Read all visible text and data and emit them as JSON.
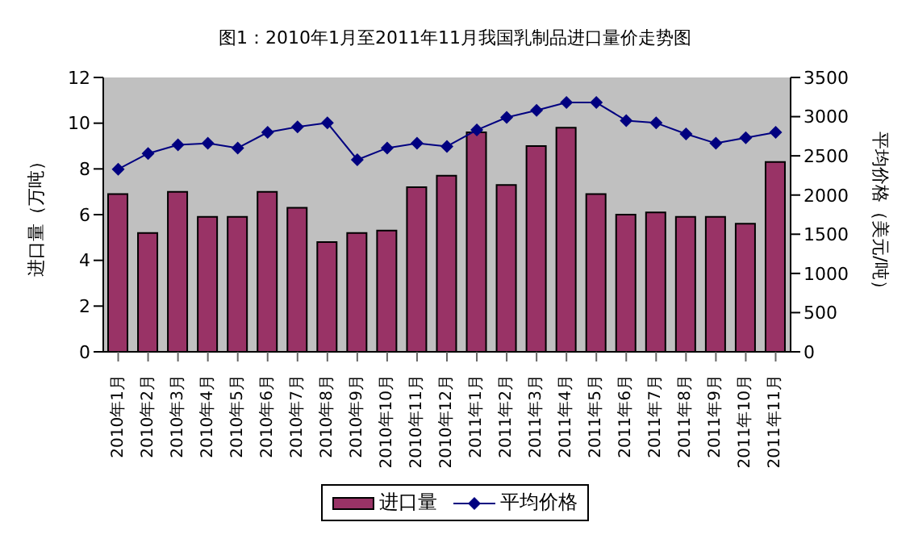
{
  "chart_data": {
    "type": "bar",
    "title": "图1：2010年1月至2011年11月我国乳制品进口量价走势图",
    "ylabel": "进口量（万吨）",
    "y2label": "平均价格（美元/吨）",
    "categories": [
      "2010年1月",
      "2010年2月",
      "2010年3月",
      "2010年4月",
      "2010年5月",
      "2010年6月",
      "2010年7月",
      "2010年8月",
      "2010年9月",
      "2010年10月",
      "2010年11月",
      "2010年12月",
      "2011年1月",
      "2011年2月",
      "2011年3月",
      "2011年4月",
      "2011年5月",
      "2011年6月",
      "2011年7月",
      "2011年8月",
      "2011年9月",
      "2011年10月",
      "2011年11月"
    ],
    "series": [
      {
        "name": "进口量",
        "color": "#993366",
        "values": [
          6.9,
          5.2,
          7.0,
          5.9,
          5.9,
          7.0,
          6.3,
          4.8,
          5.2,
          5.3,
          7.2,
          7.7,
          9.6,
          7.3,
          9.0,
          9.8,
          6.9,
          6.0,
          6.1,
          5.9,
          5.9,
          5.6,
          8.3
        ]
      },
      {
        "name": "平均价格",
        "type": "line",
        "axis": "y2",
        "color": "#000080",
        "marker": "diamond",
        "values": [
          2330,
          2530,
          2640,
          2660,
          2600,
          2800,
          2870,
          2920,
          2450,
          2600,
          2660,
          2620,
          2830,
          2990,
          3080,
          3180,
          3180,
          2950,
          2920,
          2780,
          2660,
          2730,
          2800
        ]
      }
    ],
    "ylim": [
      0,
      12
    ],
    "yticks": [
      0,
      2,
      4,
      6,
      8,
      10,
      12
    ],
    "y2lim": [
      0,
      3500
    ],
    "y2ticks": [
      0,
      500,
      1000,
      1500,
      2000,
      2500,
      3000,
      3500
    ],
    "grid": false,
    "legend": "bottom"
  }
}
